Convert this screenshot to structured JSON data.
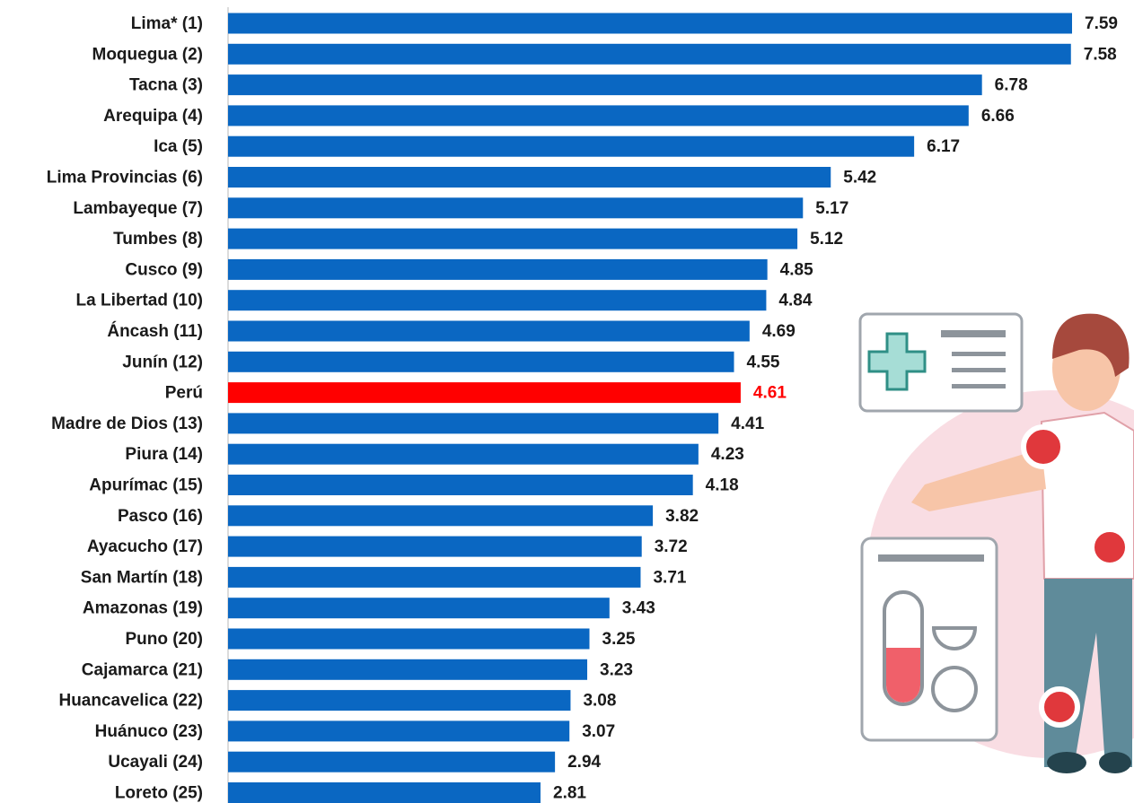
{
  "chart_data": {
    "type": "bar",
    "orientation": "horizontal",
    "categories": [
      "Lima* (1)",
      "Moquegua (2)",
      "Tacna (3)",
      "Arequipa (4)",
      "Ica (5)",
      "Lima Provincias (6)",
      "Lambayeque (7)",
      "Tumbes (8)",
      "Cusco (9)",
      "La Libertad (10)",
      "Áncash (11)",
      "Junín (12)",
      "Perú",
      "Madre de Dios (13)",
      "Piura (14)",
      "Apurímac (15)",
      "Pasco (16)",
      "Ayacucho (17)",
      "San Martín (18)",
      "Amazonas (19)",
      "Puno (20)",
      "Cajamarca (21)",
      "Huancavelica (22)",
      "Huánuco (23)",
      "Ucayali (24)",
      "Loreto (25)"
    ],
    "values": [
      7.59,
      7.58,
      6.78,
      6.66,
      6.17,
      5.42,
      5.17,
      5.12,
      4.85,
      4.84,
      4.69,
      4.55,
      4.61,
      4.41,
      4.23,
      4.18,
      3.82,
      3.72,
      3.71,
      3.43,
      3.25,
      3.23,
      3.08,
      3.07,
      2.94,
      2.81
    ],
    "colors": [
      "#0a67c2",
      "#0a67c2",
      "#0a67c2",
      "#0a67c2",
      "#0a67c2",
      "#0a67c2",
      "#0a67c2",
      "#0a67c2",
      "#0a67c2",
      "#0a67c2",
      "#0a67c2",
      "#0a67c2",
      "#ff0000",
      "#0a67c2",
      "#0a67c2",
      "#0a67c2",
      "#0a67c2",
      "#0a67c2",
      "#0a67c2",
      "#0a67c2",
      "#0a67c2",
      "#0a67c2",
      "#0a67c2",
      "#0a67c2",
      "#0a67c2",
      "#0a67c2"
    ],
    "label_colors": [
      "#1a1a1a",
      "#1a1a1a",
      "#1a1a1a",
      "#1a1a1a",
      "#1a1a1a",
      "#1a1a1a",
      "#1a1a1a",
      "#1a1a1a",
      "#1a1a1a",
      "#1a1a1a",
      "#1a1a1a",
      "#1a1a1a",
      "#ff0000",
      "#1a1a1a",
      "#1a1a1a",
      "#1a1a1a",
      "#1a1a1a",
      "#1a1a1a",
      "#1a1a1a",
      "#1a1a1a",
      "#1a1a1a",
      "#1a1a1a",
      "#1a1a1a",
      "#1a1a1a",
      "#1a1a1a",
      "#1a1a1a"
    ]
  }
}
